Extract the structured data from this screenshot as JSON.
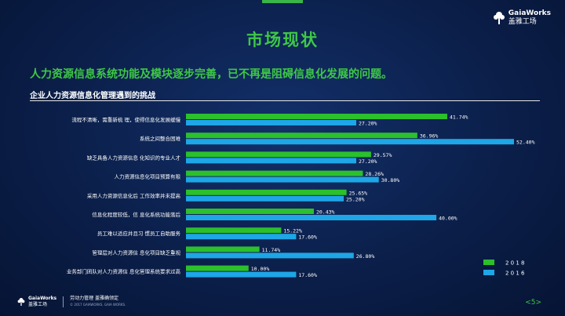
{
  "brand": {
    "name_en": "GaiaWorks",
    "name_cn": "盖雅工场",
    "logo_icon": "tree-icon"
  },
  "page": {
    "title": "市场现状",
    "page_number": "<5>"
  },
  "headline": "人力资源信息系统功能及模块逐步完善，已不再是阻碍信息化发展的问题。",
  "footer": {
    "slogan": "劳动力管理 盖雅确领定",
    "copyright": "© 2017 GAIAWORKS. GAIA WORKS."
  },
  "colors": {
    "accent": "#3ec846",
    "series_2018": "#2bc02c",
    "series_2016": "#1ea6e6"
  },
  "chart_data": {
    "type": "bar",
    "orientation": "horizontal",
    "title": "企业人力资源信息化管理遇到的挑战",
    "categories": [
      "流程不清晰，需重新梳 理，使得信息化发展缓慢",
      "系统之间整合困难",
      "缺乏具备人力资源信息 化知识的专业人才",
      "人力资源信息化项目预算有限",
      "采用人力资源信息化后 工作效率并未提高",
      "信息化程度较低，信 息化系统功能落后",
      "员工难以适应并且习 惯员工自助服务",
      "管理层对人力资源信 息化项目缺乏重视",
      "业务部门团队对人力资源信 息化管理系统要求过高"
    ],
    "series": [
      {
        "name": "2 0 1 8",
        "values": [
          41.74,
          36.96,
          29.57,
          28.26,
          25.65,
          20.43,
          15.22,
          11.74,
          10.0
        ],
        "labels": [
          "41.74%",
          "36.96%",
          "29.57%",
          "28.26%",
          "25.65%",
          "20.43%",
          "15.22%",
          "11.74%",
          "10.00%"
        ]
      },
      {
        "name": "2 0 1 6",
        "values": [
          27.2,
          52.4,
          27.2,
          30.8,
          25.2,
          40.0,
          17.6,
          26.8,
          17.6
        ],
        "labels": [
          "27.20%",
          "52.40%",
          "27.20%",
          "30.80%",
          "25.20%",
          "40.00%",
          "17.60%",
          "26.80%",
          "17.60%"
        ]
      }
    ],
    "xlim": [
      0,
      52.4
    ],
    "legend_position": "bottom-right",
    "grid": false
  }
}
